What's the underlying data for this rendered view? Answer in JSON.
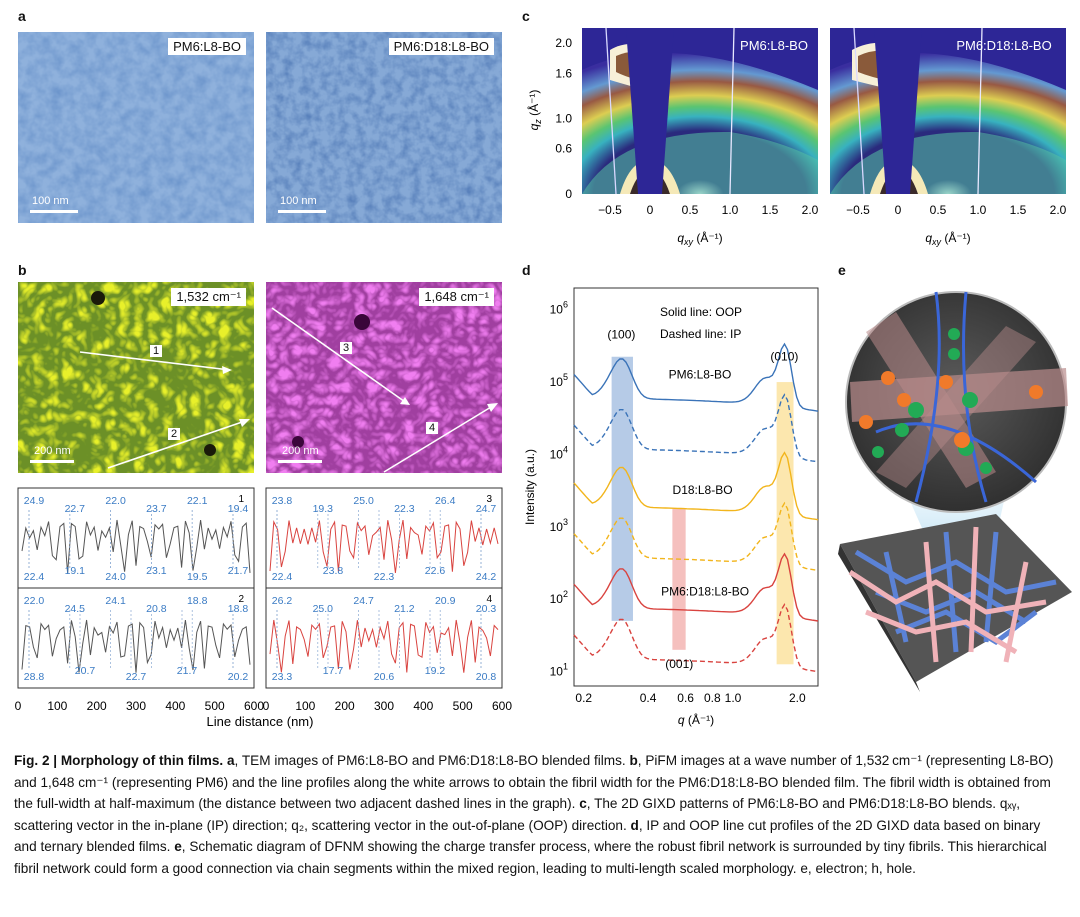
{
  "panels": {
    "a": {
      "label": "a",
      "images": [
        {
          "tag": "PM6:L8-BO",
          "scale": "100 nm"
        },
        {
          "tag": "PM6:D18:L8-BO",
          "scale": "100 nm"
        }
      ]
    },
    "b": {
      "label": "b",
      "images": [
        {
          "tag": "1,532 cm⁻¹",
          "scale": "200 nm",
          "arrows": [
            "1",
            "2"
          ]
        },
        {
          "tag": "1,648 cm⁻¹",
          "scale": "200 nm",
          "arrows": [
            "3",
            "4"
          ]
        }
      ],
      "profiles": [
        {
          "id": "1",
          "values": [
            "24.9",
            "22.7",
            "22.0",
            "23.7",
            "22.1",
            "19.4",
            "22.4",
            "19.1",
            "24.0",
            "23.1",
            "19.5",
            "21.7"
          ]
        },
        {
          "id": "2",
          "values": [
            "22.0",
            "24.5",
            "24.1",
            "20.8",
            "18.8",
            "18.8",
            "28.8",
            "20.7",
            "22.7",
            "21.7",
            "20.2"
          ]
        },
        {
          "id": "3",
          "values": [
            "23.8",
            "19.3",
            "25.0",
            "22.3",
            "26.4",
            "24.7",
            "22.4",
            "23.8",
            "22.3",
            "22.6",
            "24.2"
          ]
        },
        {
          "id": "4",
          "values": [
            "26.2",
            "25.0",
            "24.7",
            "21.2",
            "20.9",
            "20.3",
            "23.3",
            "17.7",
            "20.6",
            "19.2",
            "20.8"
          ]
        }
      ],
      "xticks": [
        "0",
        "100",
        "200",
        "300",
        "400",
        "500",
        "600"
      ],
      "xlabel": "Line distance (nm)"
    },
    "c": {
      "label": "c",
      "patterns": [
        {
          "tag": "PM6:L8-BO"
        },
        {
          "tag": "PM6:D18:L8-BO"
        }
      ],
      "yticks": [
        "2.0",
        "1.6",
        "1.0",
        "0.6",
        "0"
      ],
      "xticks": [
        "−0.5",
        "0",
        "0.5",
        "1.0",
        "1.5",
        "2.0"
      ],
      "ylabel": "q",
      "ylabel_sub": "z",
      "ylabel_unit": " (Å⁻¹)",
      "xlabel": "q",
      "xlabel_sub": "xy",
      "xlabel_unit": " (Å⁻¹)"
    },
    "d": {
      "label": "d",
      "legend_solid": "Solid line: OOP",
      "legend_dashed": "Dashed line: IP",
      "ylabel": "Intensity (a.u.)",
      "xlabel": "q",
      "xlabel_unit": " (Å⁻¹)",
      "xticks": [
        "0.2",
        "0.4",
        "0.6",
        "0.8",
        "1.0",
        "2.0"
      ],
      "yticks": [
        "10",
        "10",
        "10",
        "10",
        "10",
        "10"
      ],
      "ytick_exps": [
        "6",
        "5",
        "4",
        "3",
        "2",
        "1"
      ],
      "peak_labels": [
        "(100)",
        "(010)",
        "(001)"
      ],
      "series_labels": [
        "PM6:L8-BO",
        "D18:L8-BO",
        "PM6:D18:L8-BO"
      ],
      "colors": {
        "PM6:L8-BO": "#3a73b8",
        "D18:L8-BO": "#f2b51c",
        "PM6:D18:L8-BO": "#d9433f"
      },
      "band_colors": {
        "blue": "#a9c2e3",
        "red": "#f3b5b3",
        "yellow": "#fbe3a0"
      }
    },
    "e": {
      "label": "e"
    }
  },
  "caption": {
    "title": "Fig. 2 | Morphology of thin films.",
    "parts": [
      {
        "b": "a",
        "t": ", TEM images of PM6:L8-BO and PM6:D18:L8-BO blended films. "
      },
      {
        "b": "b",
        "t": ", PiFM images at a wave number of 1,532 cm⁻¹ (representing L8-BO) and 1,648 cm⁻¹ (representing PM6) and the line profiles along the white arrows to obtain the fibril width for the PM6:D18:L8-BO blended film. The fibril width is obtained from the full-width at half-maximum (the distance between two adjacent dashed lines in the graph). "
      },
      {
        "b": "c",
        "t": ", The 2D GIXD patterns of PM6:L8-BO and PM6:D18:L8-BO blends. qₓᵧ, scattering vector in the in-plane (IP) direction; q₂, scattering vector in the out-of-plane (OOP) direction. "
      },
      {
        "b": "d",
        "t": ", IP and OOP line cut profiles of the 2D GIXD data based on binary and ternary blended films. "
      },
      {
        "b": "e",
        "t": ", Schematic diagram of DFNM showing the charge transfer process, where the robust fibril network is surrounded by tiny fibrils. This hierarchical fibril network could form a good connection via chain segments within the mixed region, leading to multi-length scaled morphology. e, electron; h, hole."
      }
    ]
  }
}
